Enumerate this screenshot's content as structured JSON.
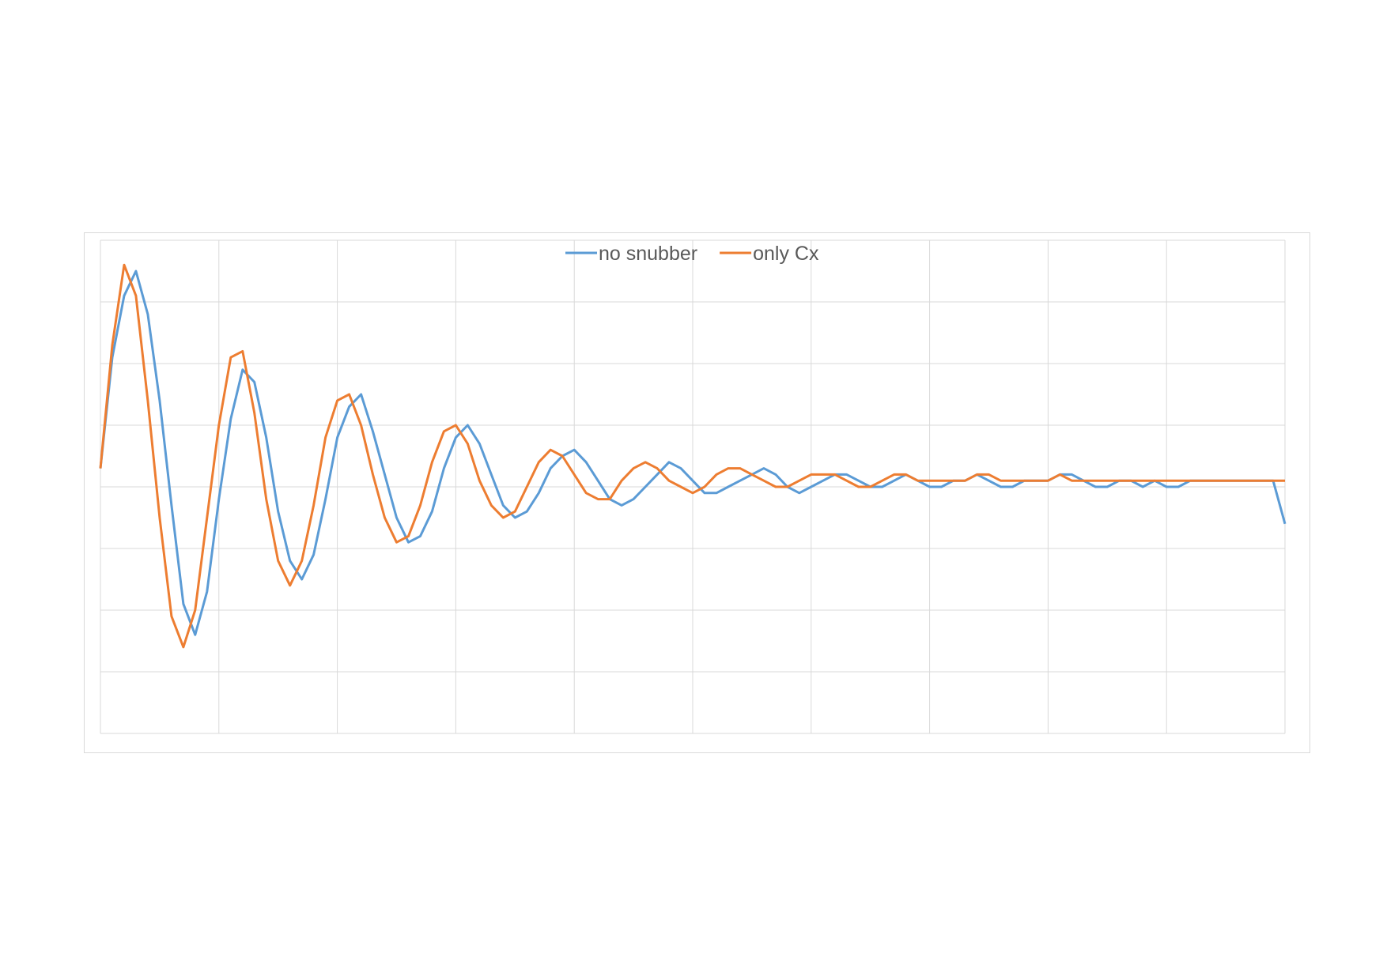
{
  "chart_data": {
    "type": "line",
    "title": "",
    "xlabel": "",
    "ylabel": "",
    "x_range": [
      0,
      500
    ],
    "ylim": [
      -4,
      4
    ],
    "x_gridlines": 10,
    "y_gridlines": 8,
    "grid": true,
    "legend_position": "top-center",
    "colors": {
      "no snubber": "#5b9bd5",
      "only Cx": "#ed7d31"
    },
    "series": [
      {
        "name": "no snubber",
        "x": [
          0,
          5,
          10,
          15,
          20,
          25,
          30,
          35,
          40,
          45,
          50,
          55,
          60,
          65,
          70,
          75,
          80,
          85,
          90,
          95,
          100,
          105,
          110,
          115,
          120,
          125,
          130,
          135,
          140,
          145,
          150,
          155,
          160,
          165,
          170,
          175,
          180,
          185,
          190,
          195,
          200,
          205,
          210,
          215,
          220,
          225,
          230,
          235,
          240,
          245,
          250,
          255,
          260,
          265,
          270,
          275,
          280,
          285,
          290,
          295,
          300,
          305,
          310,
          315,
          320,
          325,
          330,
          335,
          340,
          345,
          350,
          355,
          360,
          365,
          370,
          375,
          380,
          385,
          390,
          395,
          400,
          405,
          410,
          415,
          420,
          425,
          430,
          435,
          440,
          445,
          450,
          455,
          460,
          465,
          470,
          475,
          480,
          485,
          490,
          495,
          500
        ],
        "y": [
          0.3,
          2.1,
          3.1,
          3.5,
          2.8,
          1.4,
          -0.3,
          -1.9,
          -2.4,
          -1.7,
          -0.2,
          1.1,
          1.9,
          1.7,
          0.8,
          -0.4,
          -1.2,
          -1.5,
          -1.1,
          -0.2,
          0.8,
          1.3,
          1.5,
          0.9,
          0.2,
          -0.5,
          -0.9,
          -0.8,
          -0.4,
          0.3,
          0.8,
          1.0,
          0.7,
          0.2,
          -0.3,
          -0.5,
          -0.4,
          -0.1,
          0.3,
          0.5,
          0.6,
          0.4,
          0.1,
          -0.2,
          -0.3,
          -0.2,
          0.0,
          0.2,
          0.4,
          0.3,
          0.1,
          -0.1,
          -0.1,
          0.0,
          0.1,
          0.2,
          0.3,
          0.2,
          0.0,
          -0.1,
          0.0,
          0.1,
          0.2,
          0.2,
          0.1,
          0.0,
          0.0,
          0.1,
          0.2,
          0.1,
          0.0,
          0.0,
          0.1,
          0.1,
          0.2,
          0.1,
          0.0,
          0.0,
          0.1,
          0.1,
          0.1,
          0.2,
          0.2,
          0.1,
          0.0,
          0.0,
          0.1,
          0.1,
          0.0,
          0.1,
          0.0,
          0.0,
          0.1,
          0.1,
          0.1,
          0.1,
          0.1,
          0.1,
          0.1,
          0.1,
          -0.6
        ]
      },
      {
        "name": "only Cx",
        "x": [
          0,
          5,
          10,
          15,
          20,
          25,
          30,
          35,
          40,
          45,
          50,
          55,
          60,
          65,
          70,
          75,
          80,
          85,
          90,
          95,
          100,
          105,
          110,
          115,
          120,
          125,
          130,
          135,
          140,
          145,
          150,
          155,
          160,
          165,
          170,
          175,
          180,
          185,
          190,
          195,
          200,
          205,
          210,
          215,
          220,
          225,
          230,
          235,
          240,
          245,
          250,
          255,
          260,
          265,
          270,
          275,
          280,
          285,
          290,
          295,
          300,
          305,
          310,
          315,
          320,
          325,
          330,
          335,
          340,
          345,
          350,
          355,
          360,
          365,
          370,
          375,
          380,
          385,
          390,
          395,
          400,
          405,
          410,
          415,
          420,
          425,
          430,
          435,
          440,
          445,
          450,
          455,
          460,
          465,
          470,
          475,
          480,
          485,
          490,
          495,
          500
        ],
        "y": [
          0.3,
          2.3,
          3.6,
          3.1,
          1.4,
          -0.5,
          -2.1,
          -2.6,
          -2.0,
          -0.5,
          1.0,
          2.1,
          2.2,
          1.2,
          -0.2,
          -1.2,
          -1.6,
          -1.2,
          -0.3,
          0.8,
          1.4,
          1.5,
          1.0,
          0.2,
          -0.5,
          -0.9,
          -0.8,
          -0.3,
          0.4,
          0.9,
          1.0,
          0.7,
          0.1,
          -0.3,
          -0.5,
          -0.4,
          0.0,
          0.4,
          0.6,
          0.5,
          0.2,
          -0.1,
          -0.2,
          -0.2,
          0.1,
          0.3,
          0.4,
          0.3,
          0.1,
          0.0,
          -0.1,
          0.0,
          0.2,
          0.3,
          0.3,
          0.2,
          0.1,
          0.0,
          0.0,
          0.1,
          0.2,
          0.2,
          0.2,
          0.1,
          0.0,
          0.0,
          0.1,
          0.2,
          0.2,
          0.1,
          0.1,
          0.1,
          0.1,
          0.1,
          0.2,
          0.2,
          0.1,
          0.1,
          0.1,
          0.1,
          0.1,
          0.2,
          0.1,
          0.1,
          0.1,
          0.1,
          0.1,
          0.1,
          0.1,
          0.1,
          0.1,
          0.1,
          0.1,
          0.1,
          0.1,
          0.1,
          0.1,
          0.1,
          0.1,
          0.1,
          0.1
        ]
      }
    ]
  }
}
